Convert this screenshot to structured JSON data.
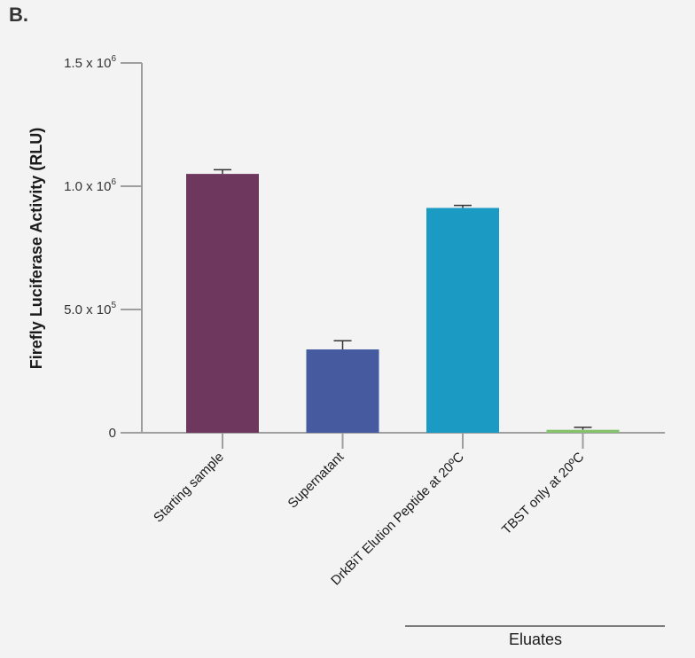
{
  "panel_label": "B.",
  "chart_data": {
    "type": "bar",
    "categories": [
      "Starting sample",
      "Supernatant",
      "DrkBiT Elution Peptide at 20ºC",
      "TBST only at 20ºC"
    ],
    "values": [
      1050000,
      338000,
      912000,
      12000
    ],
    "errors": [
      17000,
      35000,
      10000,
      10000
    ],
    "colors": [
      "#6e385e",
      "#455a9f",
      "#1b9bc4",
      "#84c26c"
    ],
    "ylabel": "Firefly Luciferase Activity (RLU)",
    "ylim": [
      0,
      1500000
    ],
    "yticks": [
      {
        "value": 0,
        "base": "0",
        "exp": ""
      },
      {
        "value": 500000,
        "base": "5.0 x 10",
        "exp": "5"
      },
      {
        "value": 1000000,
        "base": "1.0 x 10",
        "exp": "6"
      },
      {
        "value": 1500000,
        "base": "1.5 x 10",
        "exp": "6"
      }
    ],
    "group_annotation": {
      "label": "Eluates",
      "categories": [
        2,
        3
      ]
    },
    "grid": false
  }
}
